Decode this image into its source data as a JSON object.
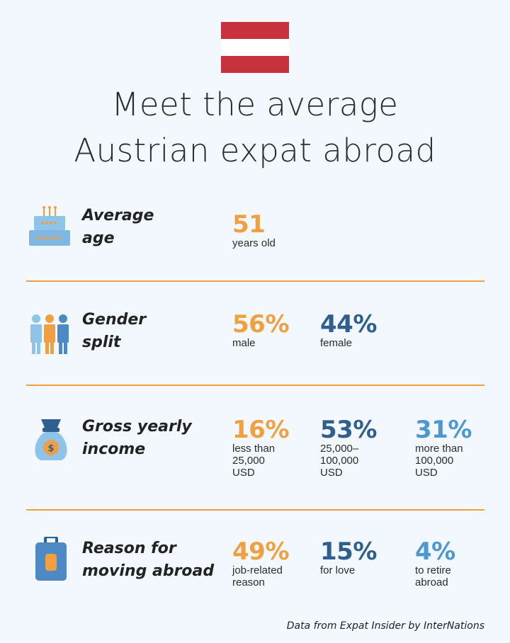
{
  "title": {
    "line1": "Meet the average",
    "line2": "Austrian expat abroad"
  },
  "colors": {
    "background": "#f2f8fd",
    "orange": "#f0a040",
    "navy": "#2f5f8f",
    "sky": "#4d98d3",
    "flag_red": "#c8323c"
  },
  "sections": [
    {
      "icon": "birthday-cake-icon",
      "label_line1": "Average",
      "label_line2": "age",
      "stats": [
        {
          "value": "51",
          "desc": "years old"
        }
      ]
    },
    {
      "icon": "people-group-icon",
      "label_line1": "Gender",
      "label_line2": "split",
      "stats": [
        {
          "value": "56%",
          "desc": "male"
        },
        {
          "value": "44%",
          "desc": "female"
        }
      ]
    },
    {
      "icon": "money-bag-icon",
      "label_line1": "Gross yearly",
      "label_line2": "income",
      "stats": [
        {
          "value": "16%",
          "desc": "less than\n25,000\nUSD"
        },
        {
          "value": "53%",
          "desc": "25,000–\n100,000\nUSD"
        },
        {
          "value": "31%",
          "desc": "more than\n100,000\nUSD"
        }
      ]
    },
    {
      "icon": "suitcase-icon",
      "label_line1": "Reason for",
      "label_line2": "moving abroad",
      "stats": [
        {
          "value": "49%",
          "desc": "job-related\nreason"
        },
        {
          "value": "15%",
          "desc": "for love"
        },
        {
          "value": "4%",
          "desc": "to retire\nabroad"
        }
      ]
    }
  ],
  "source": "Data from Expat Insider by InterNations"
}
